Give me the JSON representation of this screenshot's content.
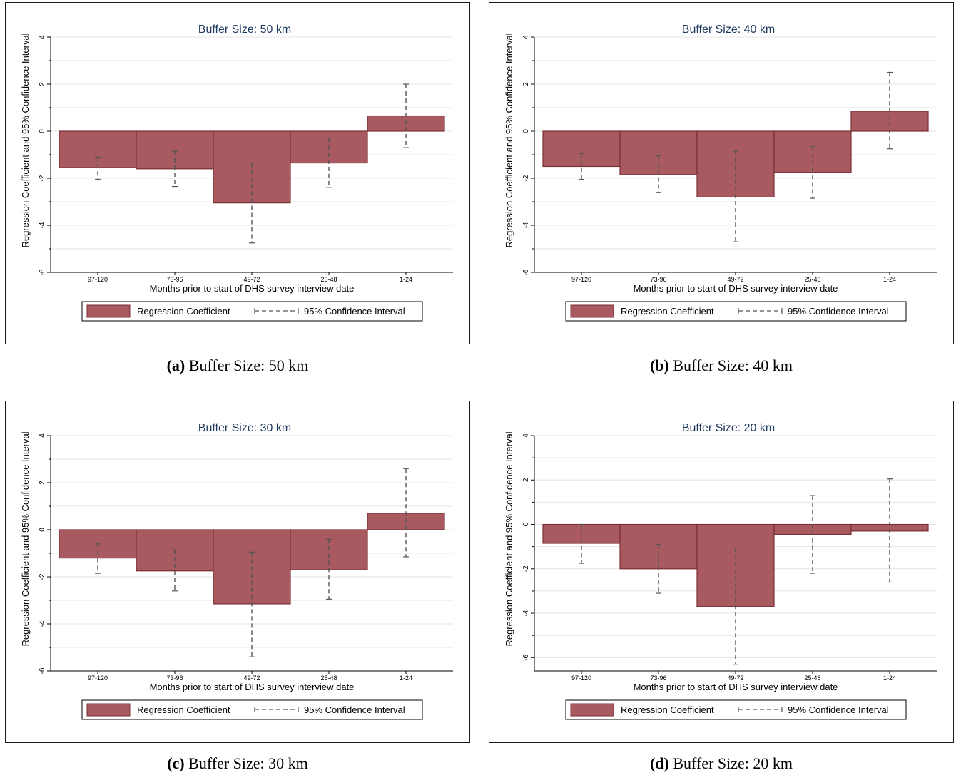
{
  "shared": {
    "ylabel": "Regression Coefficient and 95% Confidence Interval",
    "xlabel": "Months prior to start of DHS survey interview date",
    "legend_bar": "Regression Coefficient",
    "legend_ci": "95% Confidence Interval"
  },
  "captions": [
    {
      "letter": "(a)",
      "text": "Buffer Size: 50 km"
    },
    {
      "letter": "(b)",
      "text": "Buffer Size: 40 km"
    },
    {
      "letter": "(c)",
      "text": "Buffer Size: 30 km"
    },
    {
      "letter": "(d)",
      "text": "Buffer Size: 20 km"
    }
  ],
  "colors": {
    "bar_fill": "#a85a60",
    "bar_stroke": "#7a2e36",
    "title": "#1f3a5f",
    "grid": "#e4e4e4",
    "ci": "#555555"
  },
  "chart_data": [
    {
      "type": "bar",
      "title": "Buffer Size: 50 km",
      "xlabel": "Months prior to start of DHS survey interview date",
      "ylabel": "Regression Coefficient and 95% Confidence Interval",
      "categories": [
        "97-120",
        "73-96",
        "49-72",
        "25-48",
        "1-24"
      ],
      "ylim": [
        -6,
        4
      ],
      "yticks": [
        -6,
        -4,
        -2,
        0,
        2,
        4
      ],
      "series": [
        {
          "name": "Regression Coefficient",
          "values": [
            -1.55,
            -1.6,
            -3.05,
            -1.35,
            0.65
          ]
        }
      ],
      "ci_low": [
        -2.05,
        -2.35,
        -4.75,
        -2.4,
        -0.7
      ],
      "ci_high": [
        -1.1,
        -0.85,
        -1.35,
        -0.3,
        2.0
      ],
      "grid": true,
      "legend": "bottom"
    },
    {
      "type": "bar",
      "title": "Buffer Size: 40 km",
      "xlabel": "Months prior to start of DHS survey interview date",
      "ylabel": "Regression Coefficient and 95% Confidence Interval",
      "categories": [
        "97-120",
        "73-96",
        "49-72",
        "25-48",
        "1-24"
      ],
      "ylim": [
        -6,
        4
      ],
      "yticks": [
        -6,
        -4,
        -2,
        0,
        2,
        4
      ],
      "series": [
        {
          "name": "Regression Coefficient",
          "values": [
            -1.5,
            -1.85,
            -2.8,
            -1.75,
            0.85
          ]
        }
      ],
      "ci_low": [
        -2.05,
        -2.6,
        -4.7,
        -2.85,
        -0.75
      ],
      "ci_high": [
        -0.95,
        -1.05,
        -0.85,
        -0.65,
        2.5
      ],
      "grid": true,
      "legend": "bottom"
    },
    {
      "type": "bar",
      "title": "Buffer Size: 30 km",
      "xlabel": "Months prior to start of DHS survey interview date",
      "ylabel": "Regression Coefficient and 95% Confidence Interval",
      "categories": [
        "97-120",
        "73-96",
        "49-72",
        "25-48",
        "1-24"
      ],
      "ylim": [
        -6,
        4
      ],
      "yticks": [
        -6,
        -4,
        -2,
        0,
        2,
        4
      ],
      "series": [
        {
          "name": "Regression Coefficient",
          "values": [
            -1.2,
            -1.75,
            -3.15,
            -1.7,
            0.7
          ]
        }
      ],
      "ci_low": [
        -1.85,
        -2.6,
        -5.4,
        -2.95,
        -1.15
      ],
      "ci_high": [
        -0.6,
        -0.85,
        -0.95,
        -0.4,
        2.6
      ],
      "grid": true,
      "legend": "bottom"
    },
    {
      "type": "bar",
      "title": "Buffer Size: 20 km",
      "xlabel": "Months prior to start of DHS survey interview date",
      "ylabel": "Regression Coefficient and 95% Confidence Interval",
      "categories": [
        "97-120",
        "73-96",
        "49-72",
        "25-48",
        "1-24"
      ],
      "ylim": [
        -6.6,
        4
      ],
      "yticks": [
        -6,
        -4,
        -2,
        0,
        2,
        4
      ],
      "series": [
        {
          "name": "Regression Coefficient",
          "values": [
            -0.85,
            -2.0,
            -3.7,
            -0.45,
            -0.3
          ]
        }
      ],
      "ci_low": [
        -1.75,
        -3.1,
        -6.3,
        -2.2,
        -2.6
      ],
      "ci_high": [
        0.0,
        -0.9,
        -1.05,
        1.3,
        2.05
      ],
      "grid": true,
      "legend": "bottom"
    }
  ]
}
